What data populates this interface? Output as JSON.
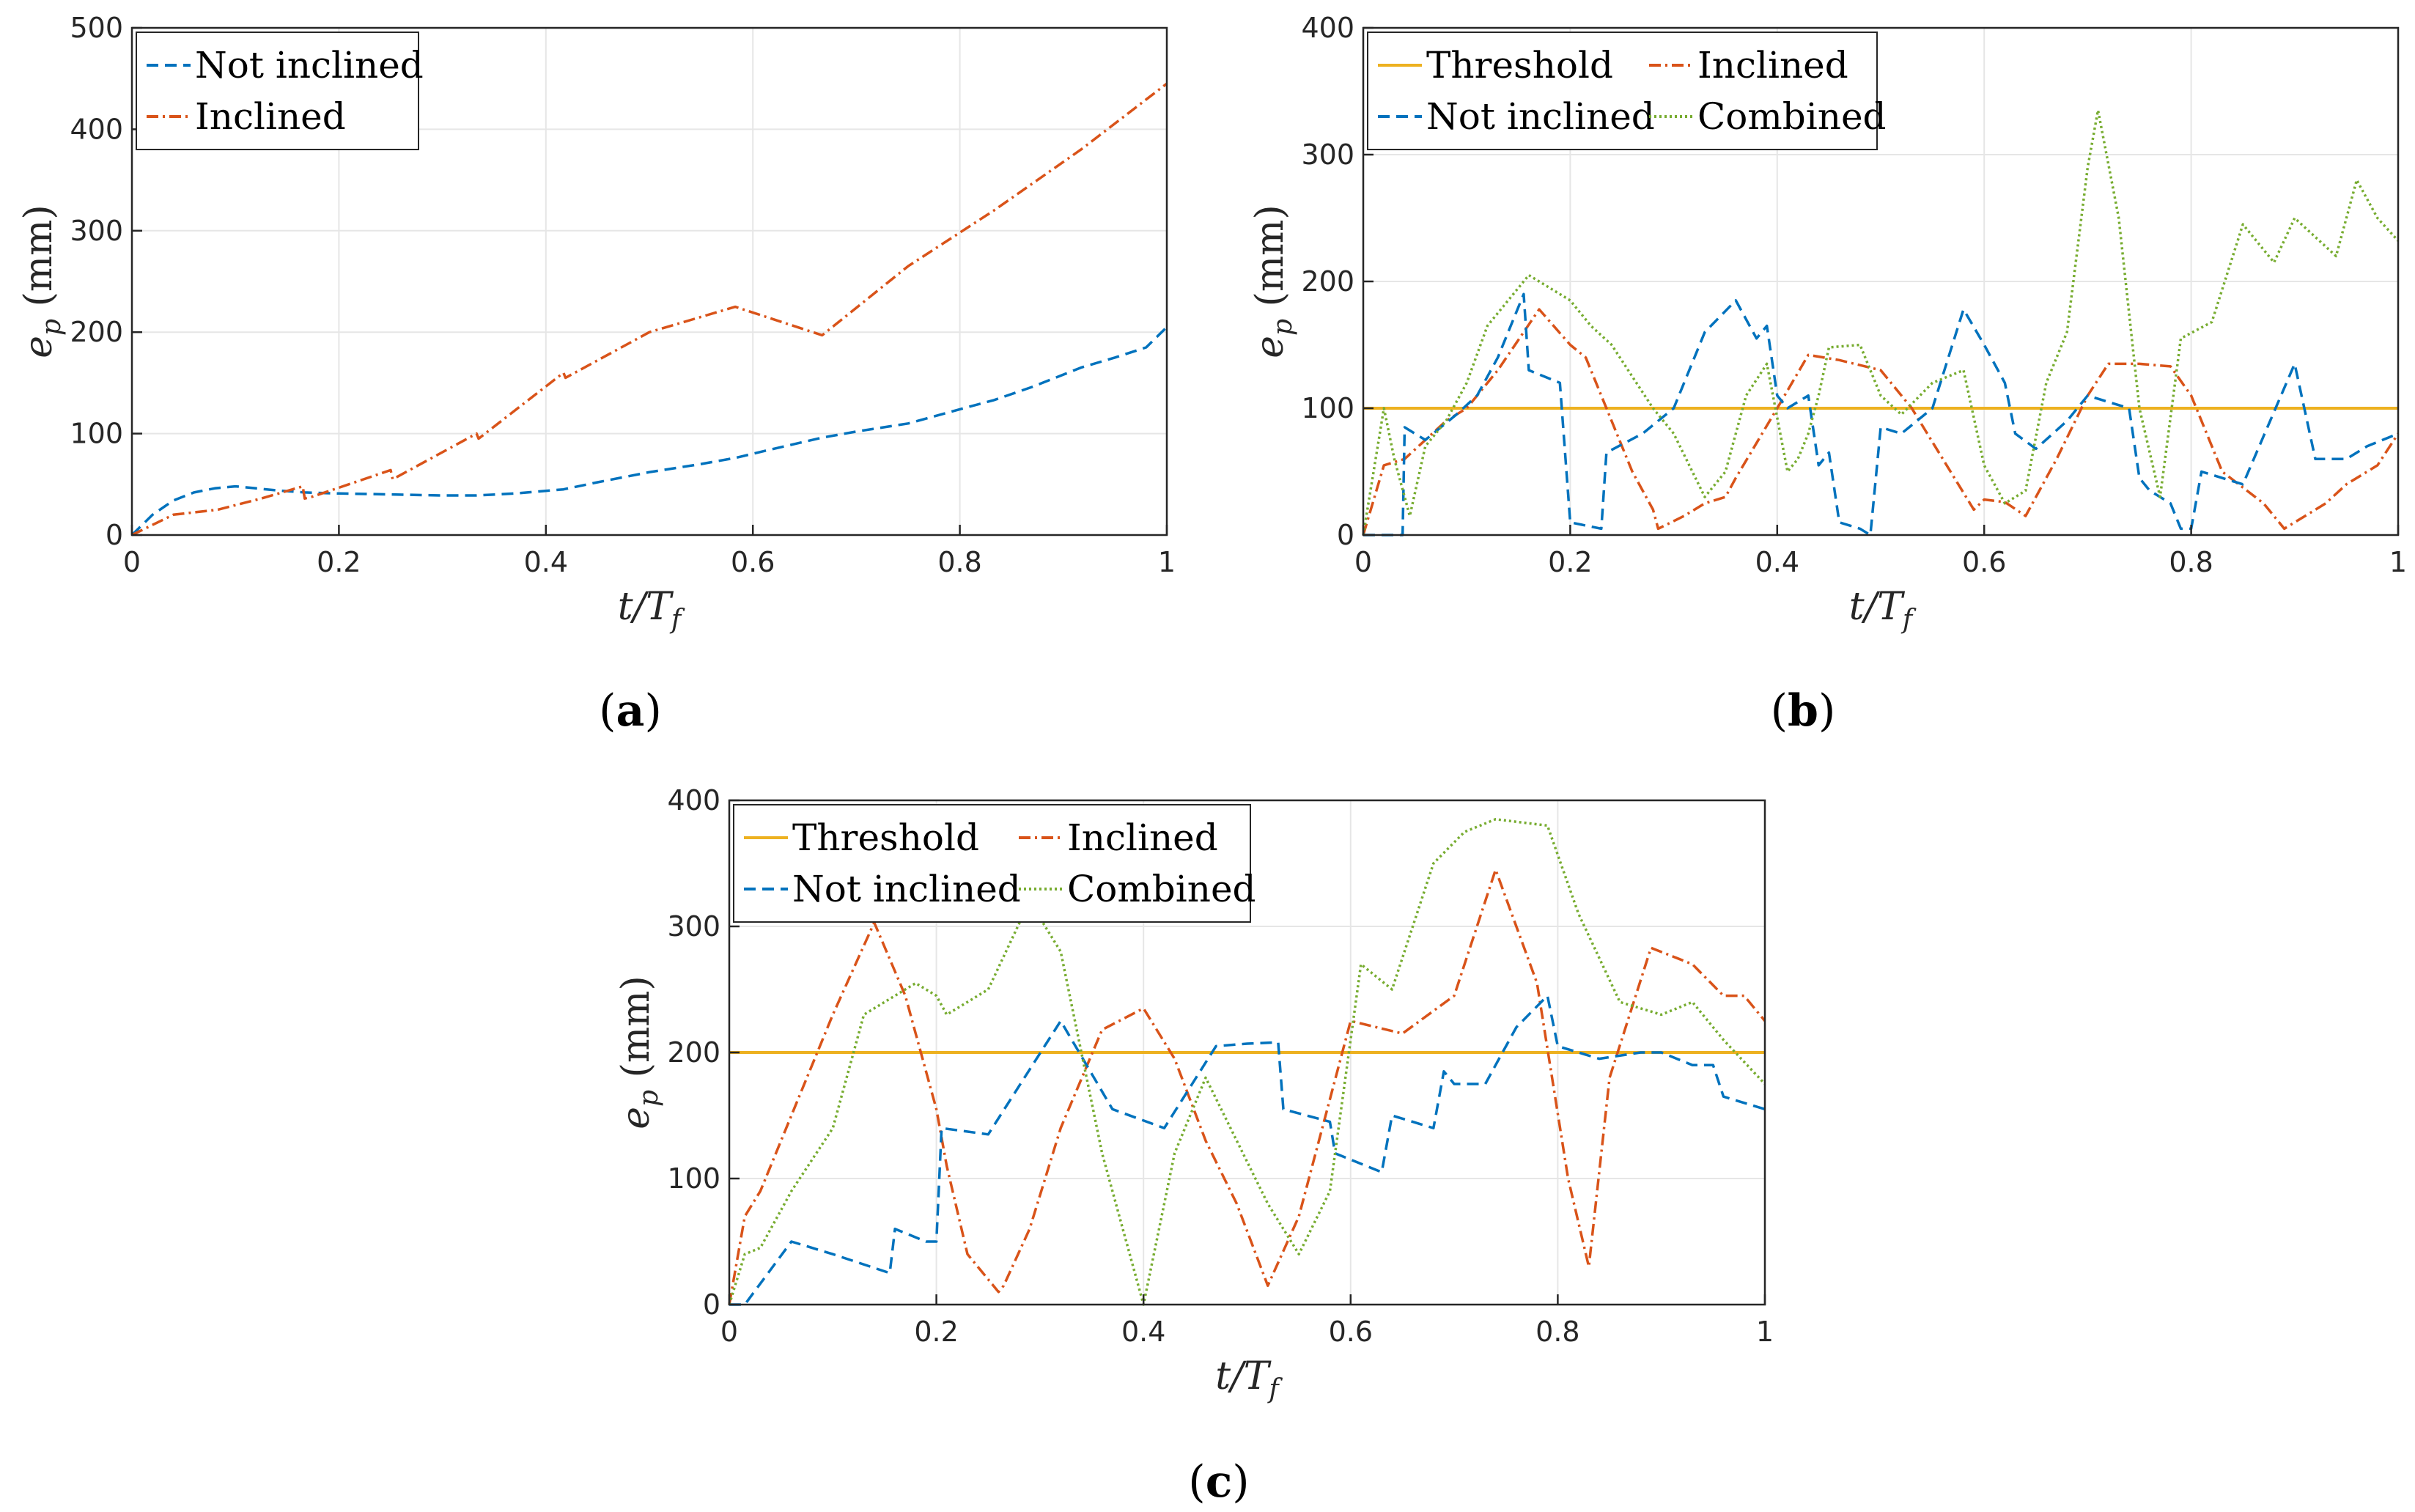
{
  "colors": {
    "not_inclined": "#0072BD",
    "inclined": "#D95319",
    "threshold": "#EDB120",
    "combined": "#77AC30"
  },
  "chart_data": [
    {
      "id": "a",
      "type": "line",
      "caption": "a",
      "xlabel": "t/T_f",
      "ylabel": "e_p (mm)",
      "xlim": [
        0,
        1
      ],
      "ylim": [
        0,
        500
      ],
      "xticks": [
        0,
        0.2,
        0.4,
        0.6,
        0.8,
        1
      ],
      "yticks": [
        0,
        100,
        200,
        300,
        400,
        500
      ],
      "xtick_labels": [
        "0",
        "0.2",
        "0.4",
        "0.6",
        "0.8",
        "1"
      ],
      "ytick_labels": [
        "0",
        "100",
        "200",
        "300",
        "400",
        "500"
      ],
      "legend_position": "top-left",
      "legend_columns": 1,
      "series": [
        {
          "name": "Not inclined",
          "key": "not_inclined",
          "style": "dashed",
          "x": [
            0,
            0.02,
            0.04,
            0.06,
            0.08,
            0.1,
            0.12,
            0.14,
            0.167,
            0.2,
            0.25,
            0.3,
            0.333,
            0.37,
            0.417,
            0.45,
            0.5,
            0.55,
            0.583,
            0.62,
            0.667,
            0.7,
            0.75,
            0.8,
            0.833,
            0.87,
            0.917,
            0.95,
            0.98,
            1
          ],
          "y": [
            0,
            20,
            34,
            42,
            46,
            48,
            46,
            44,
            42,
            41,
            40,
            39,
            39,
            41,
            45,
            52,
            62,
            70,
            76,
            85,
            96,
            102,
            110,
            124,
            133,
            146,
            165,
            175,
            185,
            205
          ]
        },
        {
          "name": "Inclined",
          "key": "inclined",
          "style": "dashdot",
          "x": [
            0,
            0.04,
            0.083,
            0.125,
            0.165,
            0.167,
            0.175,
            0.25,
            0.252,
            0.333,
            0.335,
            0.417,
            0.419,
            0.5,
            0.583,
            0.667,
            0.75,
            0.833,
            0.917,
            1
          ],
          "y": [
            0,
            20,
            25,
            36,
            48,
            36,
            38,
            64,
            55,
            100,
            95,
            160,
            155,
            200,
            225,
            197,
            265,
            320,
            380,
            445
          ]
        }
      ]
    },
    {
      "id": "b",
      "type": "line",
      "caption": "b",
      "xlabel": "t/T_f",
      "ylabel": "e_p (mm)",
      "xlim": [
        0,
        1
      ],
      "ylim": [
        0,
        400
      ],
      "xticks": [
        0,
        0.2,
        0.4,
        0.6,
        0.8,
        1
      ],
      "yticks": [
        0,
        100,
        200,
        300,
        400
      ],
      "xtick_labels": [
        "0",
        "0.2",
        "0.4",
        "0.6",
        "0.8",
        "1"
      ],
      "ytick_labels": [
        "0",
        "100",
        "200",
        "300",
        "400"
      ],
      "legend_position": "top-left",
      "legend_columns": 2,
      "series": [
        {
          "name": "Threshold",
          "key": "threshold",
          "style": "solid",
          "x": [
            0,
            1
          ],
          "y": [
            100,
            100
          ]
        },
        {
          "name": "Inclined",
          "key": "inclined",
          "style": "dashdot",
          "x": [
            0,
            0.02,
            0.04,
            0.06,
            0.08,
            0.1,
            0.13,
            0.17,
            0.2,
            0.215,
            0.26,
            0.28,
            0.285,
            0.31,
            0.33,
            0.35,
            0.36,
            0.4,
            0.43,
            0.46,
            0.5,
            0.53,
            0.56,
            0.59,
            0.6,
            0.62,
            0.64,
            0.67,
            0.7,
            0.72,
            0.75,
            0.78,
            0.8,
            0.83,
            0.87,
            0.89,
            0.9,
            0.93,
            0.95,
            0.98,
            1
          ],
          "y": [
            0,
            55,
            60,
            75,
            90,
            100,
            130,
            178,
            150,
            140,
            50,
            20,
            5,
            15,
            25,
            30,
            45,
            100,
            142,
            138,
            130,
            100,
            60,
            20,
            28,
            26,
            15,
            60,
            110,
            135,
            135,
            133,
            110,
            50,
            25,
            5,
            10,
            25,
            40,
            55,
            80
          ]
        },
        {
          "name": "Not inclined",
          "key": "not_inclined",
          "style": "dashed",
          "x": [
            0,
            0.02,
            0.038,
            0.04,
            0.06,
            0.09,
            0.11,
            0.13,
            0.155,
            0.16,
            0.19,
            0.2,
            0.23,
            0.235,
            0.27,
            0.3,
            0.33,
            0.36,
            0.38,
            0.39,
            0.4,
            0.41,
            0.43,
            0.44,
            0.45,
            0.46,
            0.48,
            0.49,
            0.5,
            0.52,
            0.55,
            0.58,
            0.6,
            0.62,
            0.63,
            0.65,
            0.68,
            0.7,
            0.72,
            0.74,
            0.75,
            0.76,
            0.78,
            0.79,
            0.8,
            0.81,
            0.85,
            0.9,
            0.92,
            0.95,
            0.97,
            1
          ],
          "y": [
            0,
            0,
            0,
            85,
            75,
            95,
            110,
            140,
            190,
            130,
            120,
            10,
            5,
            65,
            80,
            100,
            160,
            185,
            155,
            165,
            110,
            100,
            110,
            55,
            65,
            10,
            5,
            0,
            85,
            80,
            100,
            178,
            150,
            120,
            80,
            68,
            90,
            110,
            105,
            100,
            45,
            35,
            25,
            5,
            5,
            50,
            40,
            135,
            60,
            60,
            70,
            80
          ]
        },
        {
          "name": "Combined",
          "key": "combined",
          "style": "dotted",
          "x": [
            0,
            0.02,
            0.03,
            0.045,
            0.06,
            0.08,
            0.1,
            0.12,
            0.14,
            0.16,
            0.18,
            0.2,
            0.22,
            0.24,
            0.26,
            0.28,
            0.3,
            0.33,
            0.35,
            0.37,
            0.39,
            0.41,
            0.42,
            0.43,
            0.44,
            0.45,
            0.48,
            0.5,
            0.52,
            0.55,
            0.58,
            0.6,
            0.62,
            0.64,
            0.66,
            0.68,
            0.7,
            0.71,
            0.73,
            0.75,
            0.77,
            0.79,
            0.82,
            0.85,
            0.88,
            0.9,
            0.92,
            0.94,
            0.96,
            0.98,
            1
          ],
          "y": [
            0,
            100,
            60,
            15,
            70,
            90,
            120,
            165,
            185,
            205,
            195,
            185,
            165,
            150,
            125,
            100,
            80,
            30,
            50,
            110,
            135,
            50,
            60,
            80,
            110,
            148,
            150,
            110,
            95,
            120,
            130,
            55,
            25,
            35,
            120,
            160,
            290,
            335,
            250,
            100,
            30,
            155,
            168,
            245,
            215,
            250,
            235,
            220,
            280,
            250,
            232
          ]
        }
      ]
    },
    {
      "id": "c",
      "type": "line",
      "caption": "c",
      "xlabel": "t/T_f",
      "ylabel": "e_p (mm)",
      "xlim": [
        0,
        1
      ],
      "ylim": [
        0,
        400
      ],
      "xticks": [
        0,
        0.2,
        0.4,
        0.6,
        0.8,
        1
      ],
      "yticks": [
        0,
        100,
        200,
        300,
        400
      ],
      "xtick_labels": [
        "0",
        "0.2",
        "0.4",
        "0.6",
        "0.8",
        "1"
      ],
      "ytick_labels": [
        "0",
        "100",
        "200",
        "300",
        "400"
      ],
      "legend_position": "top-left",
      "legend_columns": 2,
      "series": [
        {
          "name": "Threshold",
          "key": "threshold",
          "style": "solid",
          "x": [
            0,
            1
          ],
          "y": [
            200,
            200
          ]
        },
        {
          "name": "Inclined",
          "key": "inclined",
          "style": "dashdot",
          "x": [
            0,
            0.015,
            0.03,
            0.06,
            0.065,
            0.1,
            0.14,
            0.17,
            0.2,
            0.21,
            0.23,
            0.26,
            0.265,
            0.29,
            0.32,
            0.36,
            0.4,
            0.43,
            0.46,
            0.49,
            0.52,
            0.55,
            0.6,
            0.65,
            0.7,
            0.74,
            0.78,
            0.81,
            0.83,
            0.85,
            0.89,
            0.93,
            0.96,
            0.98,
            1
          ],
          "y": [
            0,
            70,
            90,
            150,
            160,
            230,
            303,
            245,
            155,
            110,
            40,
            10,
            15,
            60,
            140,
            218,
            235,
            195,
            130,
            80,
            15,
            70,
            225,
            215,
            245,
            345,
            255,
            100,
            30,
            180,
            283,
            270,
            245,
            245,
            225
          ]
        },
        {
          "name": "Not inclined",
          "key": "not_inclined",
          "style": "dashed",
          "x": [
            0,
            0.015,
            0.06,
            0.1,
            0.155,
            0.16,
            0.19,
            0.2,
            0.205,
            0.25,
            0.32,
            0.37,
            0.42,
            0.47,
            0.5,
            0.53,
            0.535,
            0.58,
            0.585,
            0.63,
            0.64,
            0.68,
            0.69,
            0.7,
            0.71,
            0.73,
            0.74,
            0.76,
            0.79,
            0.8,
            0.84,
            0.88,
            0.9,
            0.93,
            0.95,
            0.96,
            1
          ],
          "y": [
            0,
            0,
            50,
            40,
            25,
            60,
            50,
            50,
            140,
            135,
            225,
            155,
            140,
            205,
            207,
            208,
            155,
            145,
            120,
            105,
            150,
            140,
            185,
            175,
            175,
            175,
            190,
            220,
            245,
            205,
            195,
            200,
            200,
            190,
            190,
            165,
            155
          ]
        },
        {
          "name": "Combined",
          "key": "combined",
          "style": "dotted",
          "x": [
            0,
            0.015,
            0.03,
            0.06,
            0.1,
            0.13,
            0.18,
            0.2,
            0.21,
            0.25,
            0.29,
            0.32,
            0.36,
            0.4,
            0.43,
            0.46,
            0.49,
            0.52,
            0.55,
            0.58,
            0.61,
            0.64,
            0.68,
            0.71,
            0.74,
            0.79,
            0.82,
            0.86,
            0.9,
            0.93,
            0.96,
            1
          ],
          "y": [
            0,
            40,
            45,
            90,
            140,
            230,
            255,
            245,
            230,
            250,
            320,
            280,
            120,
            0,
            120,
            180,
            130,
            80,
            40,
            90,
            270,
            250,
            350,
            375,
            385,
            380,
            310,
            240,
            230,
            240,
            210,
            175
          ]
        }
      ]
    }
  ]
}
